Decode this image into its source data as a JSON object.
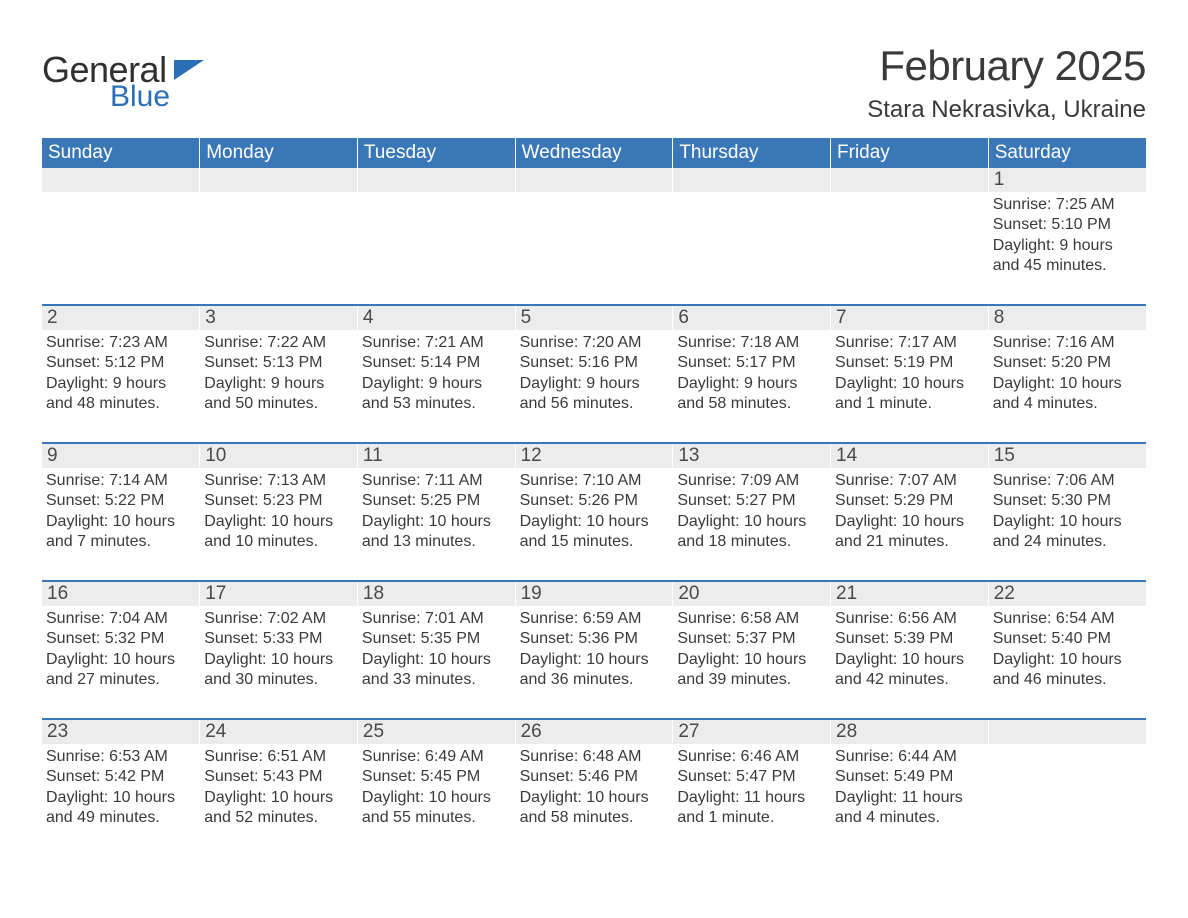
{
  "brand": {
    "word1": "General",
    "word2": "Blue",
    "accent_color": "#2a6fb5"
  },
  "title": "February 2025",
  "location": "Stara Nekrasivka, Ukraine",
  "header_bg": "#3a77b7",
  "header_fg": "#ffffff",
  "stripe_bg": "#ececec",
  "text_color": "#3a3a3a",
  "day_names": [
    "Sunday",
    "Monday",
    "Tuesday",
    "Wednesday",
    "Thursday",
    "Friday",
    "Saturday"
  ],
  "weeks": [
    {
      "days": [
        null,
        null,
        null,
        null,
        null,
        null,
        {
          "n": "1",
          "sunrise": "Sunrise: 7:25 AM",
          "sunset": "Sunset: 5:10 PM",
          "daylight": "Daylight: 9 hours and 45 minutes."
        }
      ]
    },
    {
      "days": [
        {
          "n": "2",
          "sunrise": "Sunrise: 7:23 AM",
          "sunset": "Sunset: 5:12 PM",
          "daylight": "Daylight: 9 hours and 48 minutes."
        },
        {
          "n": "3",
          "sunrise": "Sunrise: 7:22 AM",
          "sunset": "Sunset: 5:13 PM",
          "daylight": "Daylight: 9 hours and 50 minutes."
        },
        {
          "n": "4",
          "sunrise": "Sunrise: 7:21 AM",
          "sunset": "Sunset: 5:14 PM",
          "daylight": "Daylight: 9 hours and 53 minutes."
        },
        {
          "n": "5",
          "sunrise": "Sunrise: 7:20 AM",
          "sunset": "Sunset: 5:16 PM",
          "daylight": "Daylight: 9 hours and 56 minutes."
        },
        {
          "n": "6",
          "sunrise": "Sunrise: 7:18 AM",
          "sunset": "Sunset: 5:17 PM",
          "daylight": "Daylight: 9 hours and 58 minutes."
        },
        {
          "n": "7",
          "sunrise": "Sunrise: 7:17 AM",
          "sunset": "Sunset: 5:19 PM",
          "daylight": "Daylight: 10 hours and 1 minute."
        },
        {
          "n": "8",
          "sunrise": "Sunrise: 7:16 AM",
          "sunset": "Sunset: 5:20 PM",
          "daylight": "Daylight: 10 hours and 4 minutes."
        }
      ]
    },
    {
      "days": [
        {
          "n": "9",
          "sunrise": "Sunrise: 7:14 AM",
          "sunset": "Sunset: 5:22 PM",
          "daylight": "Daylight: 10 hours and 7 minutes."
        },
        {
          "n": "10",
          "sunrise": "Sunrise: 7:13 AM",
          "sunset": "Sunset: 5:23 PM",
          "daylight": "Daylight: 10 hours and 10 minutes."
        },
        {
          "n": "11",
          "sunrise": "Sunrise: 7:11 AM",
          "sunset": "Sunset: 5:25 PM",
          "daylight": "Daylight: 10 hours and 13 minutes."
        },
        {
          "n": "12",
          "sunrise": "Sunrise: 7:10 AM",
          "sunset": "Sunset: 5:26 PM",
          "daylight": "Daylight: 10 hours and 15 minutes."
        },
        {
          "n": "13",
          "sunrise": "Sunrise: 7:09 AM",
          "sunset": "Sunset: 5:27 PM",
          "daylight": "Daylight: 10 hours and 18 minutes."
        },
        {
          "n": "14",
          "sunrise": "Sunrise: 7:07 AM",
          "sunset": "Sunset: 5:29 PM",
          "daylight": "Daylight: 10 hours and 21 minutes."
        },
        {
          "n": "15",
          "sunrise": "Sunrise: 7:06 AM",
          "sunset": "Sunset: 5:30 PM",
          "daylight": "Daylight: 10 hours and 24 minutes."
        }
      ]
    },
    {
      "days": [
        {
          "n": "16",
          "sunrise": "Sunrise: 7:04 AM",
          "sunset": "Sunset: 5:32 PM",
          "daylight": "Daylight: 10 hours and 27 minutes."
        },
        {
          "n": "17",
          "sunrise": "Sunrise: 7:02 AM",
          "sunset": "Sunset: 5:33 PM",
          "daylight": "Daylight: 10 hours and 30 minutes."
        },
        {
          "n": "18",
          "sunrise": "Sunrise: 7:01 AM",
          "sunset": "Sunset: 5:35 PM",
          "daylight": "Daylight: 10 hours and 33 minutes."
        },
        {
          "n": "19",
          "sunrise": "Sunrise: 6:59 AM",
          "sunset": "Sunset: 5:36 PM",
          "daylight": "Daylight: 10 hours and 36 minutes."
        },
        {
          "n": "20",
          "sunrise": "Sunrise: 6:58 AM",
          "sunset": "Sunset: 5:37 PM",
          "daylight": "Daylight: 10 hours and 39 minutes."
        },
        {
          "n": "21",
          "sunrise": "Sunrise: 6:56 AM",
          "sunset": "Sunset: 5:39 PM",
          "daylight": "Daylight: 10 hours and 42 minutes."
        },
        {
          "n": "22",
          "sunrise": "Sunrise: 6:54 AM",
          "sunset": "Sunset: 5:40 PM",
          "daylight": "Daylight: 10 hours and 46 minutes."
        }
      ]
    },
    {
      "days": [
        {
          "n": "23",
          "sunrise": "Sunrise: 6:53 AM",
          "sunset": "Sunset: 5:42 PM",
          "daylight": "Daylight: 10 hours and 49 minutes."
        },
        {
          "n": "24",
          "sunrise": "Sunrise: 6:51 AM",
          "sunset": "Sunset: 5:43 PM",
          "daylight": "Daylight: 10 hours and 52 minutes."
        },
        {
          "n": "25",
          "sunrise": "Sunrise: 6:49 AM",
          "sunset": "Sunset: 5:45 PM",
          "daylight": "Daylight: 10 hours and 55 minutes."
        },
        {
          "n": "26",
          "sunrise": "Sunrise: 6:48 AM",
          "sunset": "Sunset: 5:46 PM",
          "daylight": "Daylight: 10 hours and 58 minutes."
        },
        {
          "n": "27",
          "sunrise": "Sunrise: 6:46 AM",
          "sunset": "Sunset: 5:47 PM",
          "daylight": "Daylight: 11 hours and 1 minute."
        },
        {
          "n": "28",
          "sunrise": "Sunrise: 6:44 AM",
          "sunset": "Sunset: 5:49 PM",
          "daylight": "Daylight: 11 hours and 4 minutes."
        },
        null
      ]
    }
  ]
}
